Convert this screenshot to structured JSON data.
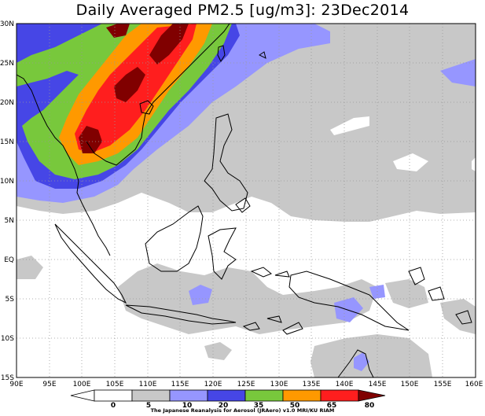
{
  "title": "Daily Averaged PM2.5 [ug/m3]: 23Dec2014",
  "map": {
    "lat_labels": [
      "30N",
      "25N",
      "20N",
      "15N",
      "10N",
      "5N",
      "EQ",
      "5S",
      "10S",
      "15S"
    ],
    "lon_labels": [
      "90E",
      "95E",
      "100E",
      "105E",
      "110E",
      "115E",
      "120E",
      "125E",
      "130E",
      "135E",
      "140E",
      "145E",
      "150E",
      "155E",
      "160E"
    ],
    "lon_range": [
      90,
      160
    ],
    "lat_range": [
      -15,
      30
    ],
    "grid": true
  },
  "legend": {
    "levels": [
      "0",
      "5",
      "10",
      "20",
      "35",
      "50",
      "65",
      "80"
    ],
    "colors": [
      "#ffffff",
      "#ffffff",
      "#c8c8c8",
      "#9696ff",
      "#4646e6",
      "#78c83c",
      "#ff9900",
      "#ff1e1e",
      "#800000"
    ]
  },
  "credit": "The Japanese Reanalysis for Aerosol (JRAero) v1.0 MRI/KU RIAM"
}
